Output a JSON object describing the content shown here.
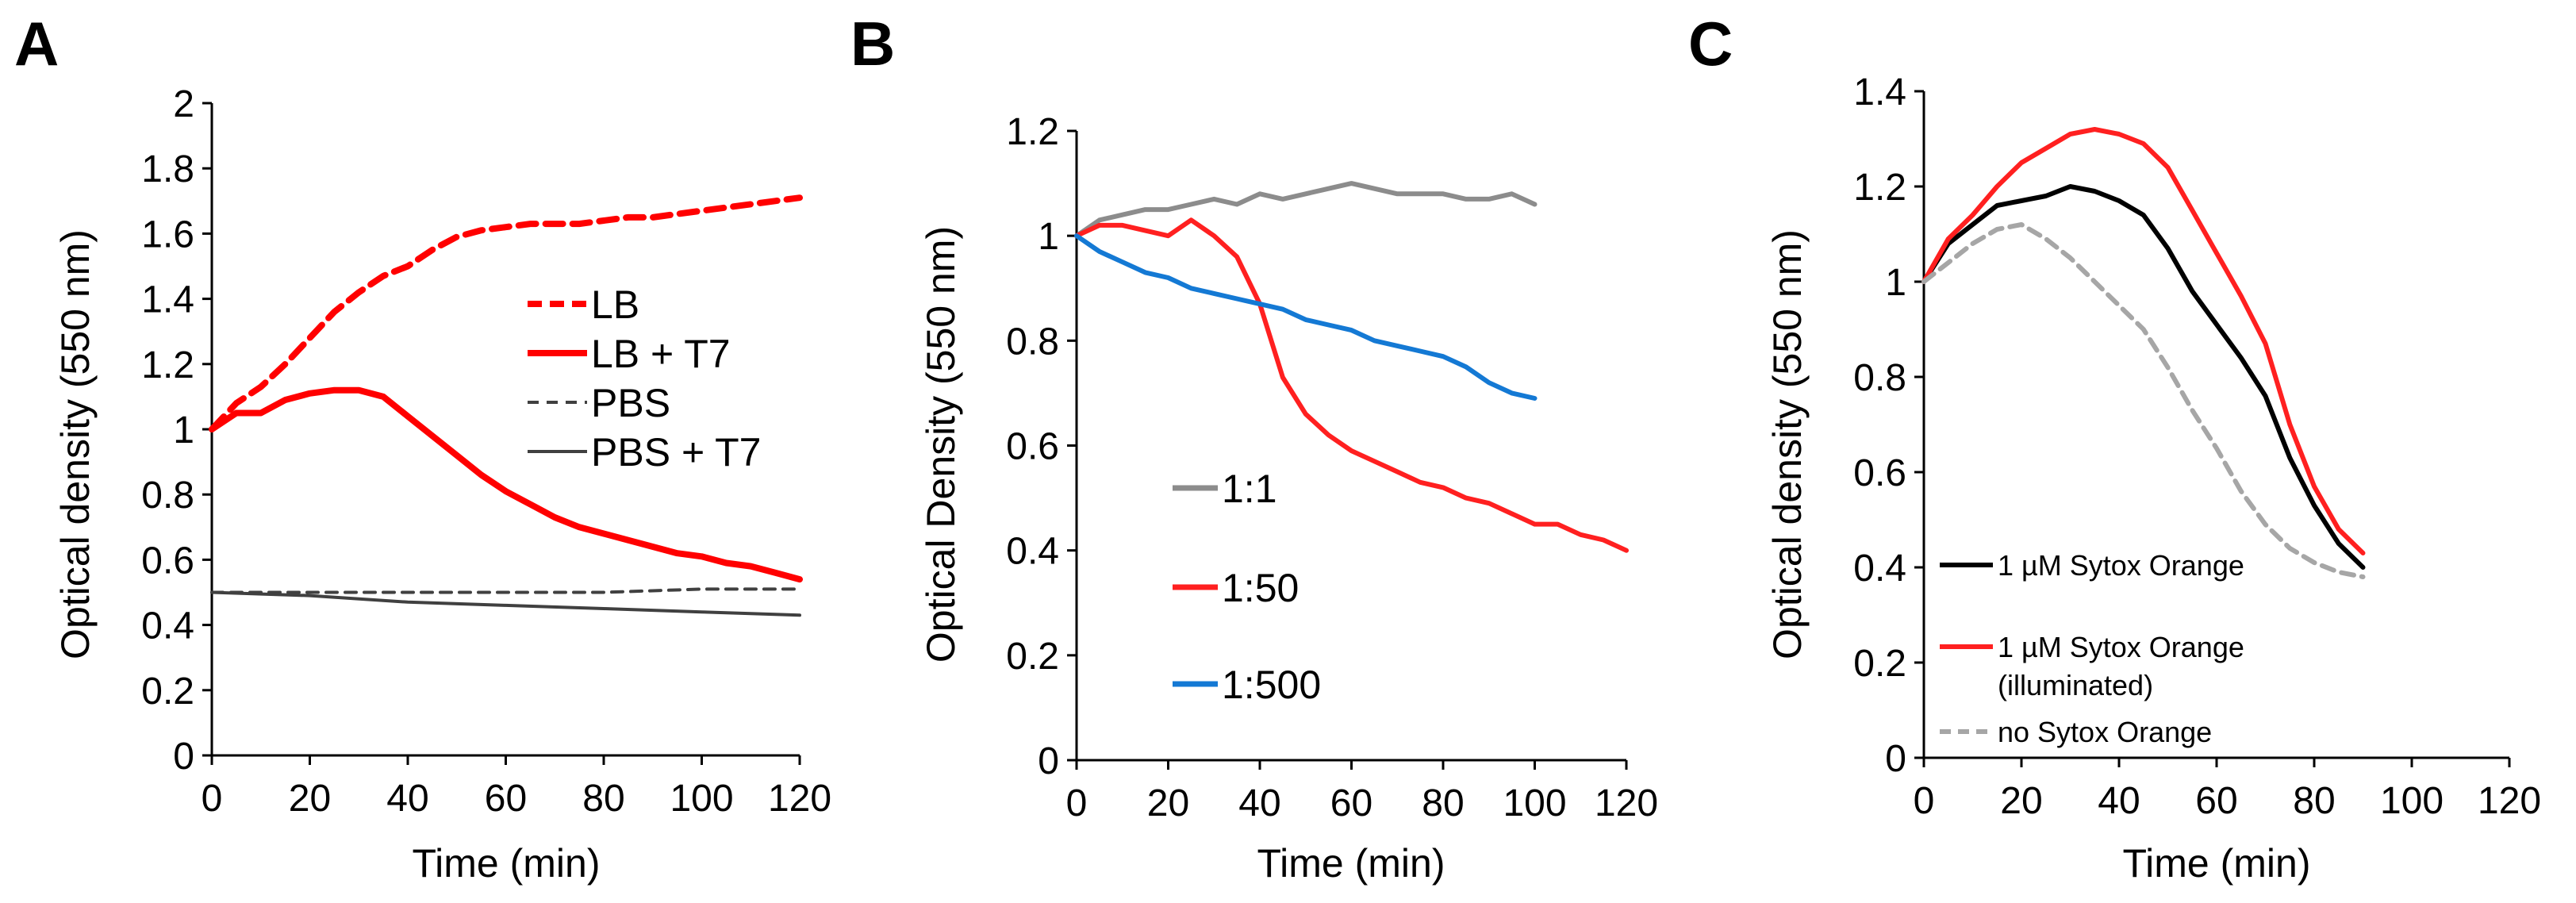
{
  "chart_data": [
    {
      "panel": "A",
      "type": "line",
      "xlabel": "Time (min)",
      "ylabel": "Optical density (550 nm)",
      "xlim": [
        0,
        120
      ],
      "ylim": [
        0,
        2
      ],
      "xticks": [
        0,
        20,
        40,
        60,
        80,
        100,
        120
      ],
      "yticks": [
        0,
        0.2,
        0.4,
        0.6,
        0.8,
        1,
        1.2,
        1.4,
        1.6,
        1.8,
        2
      ],
      "ytick_labels": [
        "0",
        "0.2",
        "0.4",
        "0.6",
        "0.8",
        "1",
        "1.2",
        "1.4",
        "1.6",
        "1.8",
        "2"
      ],
      "legend_position": "right",
      "series": [
        {
          "name": "LB",
          "color": "#ff0000",
          "style": "dashed-thick",
          "x": [
            0,
            5,
            10,
            15,
            20,
            25,
            30,
            35,
            40,
            45,
            50,
            55,
            60,
            65,
            70,
            75,
            80,
            85,
            90,
            95,
            100,
            105,
            110,
            115,
            120
          ],
          "y": [
            1.0,
            1.08,
            1.13,
            1.2,
            1.28,
            1.36,
            1.42,
            1.47,
            1.5,
            1.55,
            1.59,
            1.61,
            1.62,
            1.63,
            1.63,
            1.63,
            1.64,
            1.65,
            1.65,
            1.66,
            1.67,
            1.68,
            1.69,
            1.7,
            1.71
          ]
        },
        {
          "name": "LB + T7",
          "color": "#ff0000",
          "style": "solid-thick",
          "x": [
            0,
            5,
            10,
            15,
            20,
            25,
            30,
            35,
            40,
            45,
            50,
            55,
            60,
            65,
            70,
            75,
            80,
            85,
            90,
            95,
            100,
            105,
            110,
            115,
            120
          ],
          "y": [
            1.0,
            1.05,
            1.05,
            1.09,
            1.11,
            1.12,
            1.12,
            1.1,
            1.04,
            0.98,
            0.92,
            0.86,
            0.81,
            0.77,
            0.73,
            0.7,
            0.68,
            0.66,
            0.64,
            0.62,
            0.61,
            0.59,
            0.58,
            0.56,
            0.54
          ]
        },
        {
          "name": "PBS",
          "color": "#404040",
          "style": "dashed-thin",
          "x": [
            0,
            20,
            40,
            60,
            80,
            100,
            120
          ],
          "y": [
            0.5,
            0.5,
            0.5,
            0.5,
            0.5,
            0.51,
            0.51
          ]
        },
        {
          "name": "PBS + T7",
          "color": "#404040",
          "style": "solid-thin",
          "x": [
            0,
            20,
            40,
            60,
            80,
            100,
            120
          ],
          "y": [
            0.5,
            0.49,
            0.47,
            0.46,
            0.45,
            0.44,
            0.43
          ]
        }
      ]
    },
    {
      "panel": "B",
      "type": "line",
      "xlabel": "Time (min)",
      "ylabel": "Optical Density (550 nm)",
      "xlim": [
        0,
        120
      ],
      "ylim": [
        0,
        1.2
      ],
      "xticks": [
        0,
        20,
        40,
        60,
        80,
        100,
        120
      ],
      "yticks": [
        0,
        0.2,
        0.4,
        0.6,
        0.8,
        1,
        1.2
      ],
      "ytick_labels": [
        "0",
        "0.2",
        "0.4",
        "0.6",
        "0.8",
        "1",
        "1.2"
      ],
      "legend_position": "bottom-left",
      "series": [
        {
          "name": "1:1",
          "color": "#8c8c8c",
          "style": "solid",
          "x": [
            0,
            5,
            10,
            15,
            20,
            25,
            30,
            35,
            40,
            45,
            50,
            55,
            60,
            65,
            70,
            75,
            80,
            85,
            90,
            95,
            100
          ],
          "y": [
            1.0,
            1.03,
            1.04,
            1.05,
            1.05,
            1.06,
            1.07,
            1.06,
            1.08,
            1.07,
            1.08,
            1.09,
            1.1,
            1.09,
            1.08,
            1.08,
            1.08,
            1.07,
            1.07,
            1.08,
            1.06
          ]
        },
        {
          "name": "1:50",
          "color": "#ff2020",
          "style": "solid",
          "x": [
            0,
            5,
            10,
            15,
            20,
            25,
            30,
            35,
            40,
            45,
            50,
            55,
            60,
            65,
            70,
            75,
            80,
            85,
            90,
            95,
            100,
            105,
            110,
            115,
            120
          ],
          "y": [
            1.0,
            1.02,
            1.02,
            1.01,
            1.0,
            1.03,
            1.0,
            0.96,
            0.87,
            0.73,
            0.66,
            0.62,
            0.59,
            0.57,
            0.55,
            0.53,
            0.52,
            0.5,
            0.49,
            0.47,
            0.45,
            0.45,
            0.43,
            0.42,
            0.4
          ]
        },
        {
          "name": "1:500",
          "color": "#1479d4",
          "style": "solid",
          "x": [
            0,
            5,
            10,
            15,
            20,
            25,
            30,
            35,
            40,
            45,
            50,
            55,
            60,
            65,
            70,
            75,
            80,
            85,
            90,
            95,
            100
          ],
          "y": [
            1.0,
            0.97,
            0.95,
            0.93,
            0.92,
            0.9,
            0.89,
            0.88,
            0.87,
            0.86,
            0.84,
            0.83,
            0.82,
            0.8,
            0.79,
            0.78,
            0.77,
            0.75,
            0.72,
            0.7,
            0.69
          ]
        }
      ]
    },
    {
      "panel": "C",
      "type": "line",
      "xlabel": "Time (min)",
      "ylabel": "Optical density (550 nm)",
      "xlim": [
        0,
        120
      ],
      "ylim": [
        0,
        1.4
      ],
      "xticks": [
        0,
        20,
        40,
        60,
        80,
        100,
        120
      ],
      "yticks": [
        0,
        0.2,
        0.4,
        0.6,
        0.8,
        1,
        1.2,
        1.4
      ],
      "ytick_labels": [
        "0",
        "0.2",
        "0.4",
        "0.6",
        "0.8",
        "1",
        "1.2",
        "1.4"
      ],
      "legend_position": "bottom-left",
      "series": [
        {
          "name": "1 µM Sytox Orange",
          "color": "#000000",
          "style": "solid",
          "x": [
            0,
            5,
            10,
            15,
            20,
            25,
            30,
            35,
            40,
            45,
            50,
            55,
            60,
            65,
            70,
            75,
            80,
            85,
            90
          ],
          "y": [
            1.0,
            1.08,
            1.12,
            1.16,
            1.17,
            1.18,
            1.2,
            1.19,
            1.17,
            1.14,
            1.07,
            0.98,
            0.91,
            0.84,
            0.76,
            0.63,
            0.53,
            0.45,
            0.4
          ]
        },
        {
          "name": "1 µM Sytox Orange",
          "name_line2": "(illuminated)",
          "color": "#ff2020",
          "style": "solid",
          "x": [
            0,
            5,
            10,
            15,
            20,
            25,
            30,
            35,
            40,
            45,
            50,
            55,
            60,
            65,
            70,
            75,
            80,
            85,
            90
          ],
          "y": [
            1.0,
            1.09,
            1.14,
            1.2,
            1.25,
            1.28,
            1.31,
            1.32,
            1.31,
            1.29,
            1.24,
            1.15,
            1.06,
            0.97,
            0.87,
            0.7,
            0.57,
            0.48,
            0.43
          ]
        },
        {
          "name": "no Sytox Orange",
          "color": "#a6a6a6",
          "style": "dashed",
          "x": [
            0,
            5,
            10,
            15,
            20,
            25,
            30,
            35,
            40,
            45,
            50,
            55,
            60,
            65,
            70,
            75,
            80,
            85,
            90
          ],
          "y": [
            1.0,
            1.04,
            1.08,
            1.11,
            1.12,
            1.09,
            1.05,
            1.0,
            0.95,
            0.9,
            0.82,
            0.73,
            0.65,
            0.56,
            0.49,
            0.44,
            0.41,
            0.39,
            0.38
          ]
        }
      ]
    }
  ]
}
